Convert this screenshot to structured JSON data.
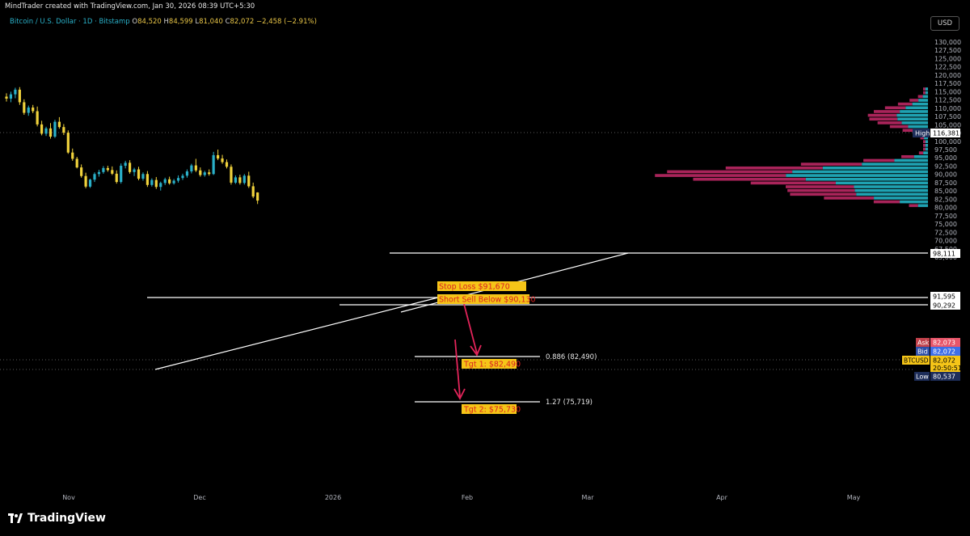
{
  "header": {
    "attribution": "MindTrader created with TradingView.com, Jan 30, 2026 08:39 UTC+5:30",
    "symbol": "Bitcoin / U.S. Dollar · 1D · Bitstamp",
    "open_label": "O",
    "open": "84,520",
    "high_label": "H",
    "high": "84,599",
    "low_label": "L",
    "low": "81,040",
    "close_label": "C",
    "close": "82,072",
    "change": "−2,458 (−2.91%)",
    "currency": "USD"
  },
  "brand": {
    "name": "TradingView"
  },
  "colors": {
    "up": "#2ab0c8",
    "down": "#f0d23c",
    "vp_up": "#1fa2b2",
    "vp_down": "#a9245a",
    "annotation_bg": "#f5c518",
    "annotation_text": "#d92020",
    "arrow": "#e2245a",
    "background": "#000000"
  },
  "chart_data": {
    "type": "candlestick",
    "y_axis": {
      "ticks": [
        "130,000",
        "127,500",
        "125,000",
        "122,500",
        "120,000",
        "117,500",
        "115,000",
        "112,500",
        "110,000",
        "107,500",
        "105,000",
        "102,500",
        "100,000",
        "97,500",
        "95,000",
        "92,500",
        "90,000",
        "87,500",
        "85,000",
        "82,500",
        "80,000",
        "77,500",
        "75,000",
        "72,500",
        "70,000",
        "67,500",
        "65,000"
      ],
      "range": [
        63000,
        132000
      ]
    },
    "x_axis": {
      "ticks": [
        "Nov",
        "Dec",
        "2026",
        "Feb",
        "Mar",
        "Apr",
        "May"
      ]
    },
    "candles_approx": [
      [
        113500,
        114500,
        112000,
        112900
      ],
      [
        112900,
        115000,
        111800,
        114200
      ],
      [
        114200,
        116200,
        113000,
        115600
      ],
      [
        115600,
        116381,
        111000,
        111800
      ],
      [
        111800,
        112700,
        108000,
        108600
      ],
      [
        108600,
        110800,
        107700,
        110200
      ],
      [
        110200,
        111000,
        108500,
        109100
      ],
      [
        109100,
        110500,
        104500,
        105100
      ],
      [
        105100,
        106200,
        101800,
        102300
      ],
      [
        102300,
        104400,
        101600,
        103900
      ],
      [
        103900,
        105500,
        100800,
        101400
      ],
      [
        101400,
        106500,
        101000,
        105900
      ],
      [
        105900,
        107300,
        103800,
        104300
      ],
      [
        104300,
        105200,
        101900,
        102600
      ],
      [
        102600,
        103300,
        96200,
        96600
      ],
      [
        96600,
        97800,
        94100,
        94700
      ],
      [
        94700,
        95300,
        91800,
        92100
      ],
      [
        92100,
        93000,
        89000,
        89500
      ],
      [
        89500,
        90500,
        85800,
        86300
      ],
      [
        86300,
        88700,
        85900,
        88400
      ],
      [
        88400,
        90600,
        87700,
        90100
      ],
      [
        90100,
        91400,
        89300,
        90700
      ],
      [
        90700,
        92500,
        90200,
        91900
      ],
      [
        91900,
        92600,
        90800,
        91300
      ],
      [
        91300,
        92400,
        89800,
        90200
      ],
      [
        90200,
        91200,
        87200,
        87700
      ],
      [
        87700,
        93300,
        87200,
        92600
      ],
      [
        92600,
        94100,
        91800,
        93500
      ],
      [
        93500,
        94300,
        90200,
        90700
      ],
      [
        90700,
        92000,
        89500,
        91500
      ],
      [
        91500,
        92300,
        88200,
        88700
      ],
      [
        88700,
        90600,
        88100,
        90100
      ],
      [
        90100,
        91000,
        86200,
        86800
      ],
      [
        86800,
        88800,
        86300,
        88300
      ],
      [
        88300,
        89200,
        85600,
        86200
      ],
      [
        86200,
        87800,
        85100,
        87400
      ],
      [
        87400,
        89000,
        86800,
        88500
      ],
      [
        88500,
        89300,
        86900,
        87300
      ],
      [
        87300,
        88600,
        86900,
        88100
      ],
      [
        88100,
        89700,
        87500,
        88900
      ],
      [
        88900,
        90200,
        88300,
        89600
      ],
      [
        89600,
        91500,
        89000,
        90900
      ],
      [
        90900,
        93200,
        90300,
        92700
      ],
      [
        92700,
        94700,
        90700,
        91200
      ],
      [
        91200,
        92100,
        89300,
        89800
      ],
      [
        89800,
        91100,
        89300,
        90600
      ],
      [
        90600,
        91500,
        89600,
        90100
      ],
      [
        90100,
        96800,
        89800,
        95800
      ],
      [
        95800,
        97500,
        94300,
        94800
      ],
      [
        94800,
        95900,
        93200,
        93700
      ],
      [
        93700,
        94500,
        91800,
        92300
      ],
      [
        92300,
        93000,
        86900,
        87500
      ],
      [
        87500,
        89700,
        87100,
        89100
      ],
      [
        89100,
        89900,
        86900,
        87400
      ],
      [
        87400,
        90100,
        86900,
        89600
      ],
      [
        89600,
        90800,
        85900,
        86400
      ],
      [
        86400,
        87500,
        82800,
        83300
      ],
      [
        84520,
        84599,
        81040,
        82072
      ]
    ],
    "volume_profile": {
      "price_range": [
        80000,
        116381
      ],
      "rows": 32
    },
    "horizontal_levels": [
      "98,111",
      "91,595",
      "90,292",
      "82,072"
    ],
    "price_labels": {
      "high": {
        "label": "High",
        "value": "116,381"
      },
      "ask": {
        "label": "Ask",
        "value": "82,073"
      },
      "bid": {
        "label": "Bid",
        "value": "82,072"
      },
      "symbol": {
        "label": "BTCUSD",
        "value": "82,072",
        "countdown": "20:50:51"
      },
      "low": {
        "label": "Low",
        "value": "80,537"
      },
      "line1": "98,111",
      "line2": "91,595",
      "line3": "90,292"
    },
    "fib_levels": [
      {
        "label": "0.886 (82,490)",
        "value": 82490
      },
      {
        "label": "1.27 (75,719)",
        "value": 75719
      }
    ],
    "annotations": {
      "stop_loss": "Stop Loss $91,670",
      "short_sell": "Short Sell Below $90,130",
      "tgt1": "Tgt 1: $82,490",
      "tgt2": "Tgt 2: $75,730"
    }
  }
}
